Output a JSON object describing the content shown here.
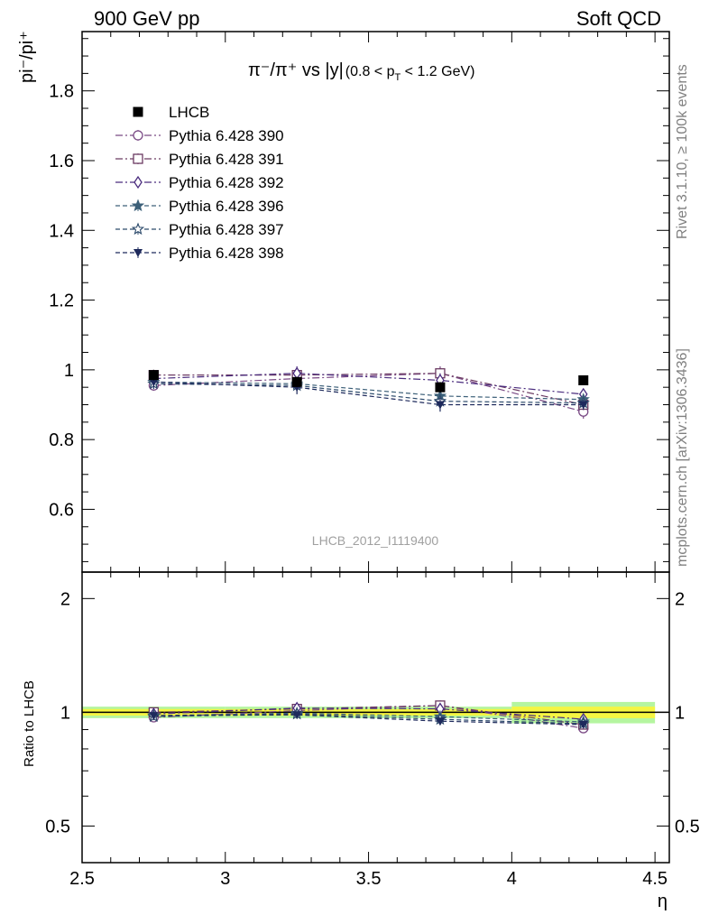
{
  "header": {
    "energy_label": "900 GeV pp",
    "process_label": "Soft QCD"
  },
  "side_labels": {
    "rivet": "Rivet 3.1.10, ≥ 100k events",
    "mcplots": "mcplots.cern.ch [arXiv:1306.3436]"
  },
  "chart_data": {
    "type": "scatter",
    "title": "π⁻/π⁺ vs |y|",
    "title_cut": "(0.8 < p",
    "title_cut_sub": "T",
    "title_cut_end": " < 1.2 GeV)",
    "watermark": "LHCB_2012_I1119400",
    "ylabel_main": "pi⁻/pi⁺",
    "ylabel_ratio": "Ratio to LHCB",
    "xlabel": "η",
    "xlim": [
      2.5,
      4.55
    ],
    "ylim_main": [
      0.42,
      1.97
    ],
    "ylim_ratio": [
      0.4,
      2.35
    ],
    "log_ratio": true,
    "x_ticks": [
      "2.5",
      "3",
      "3.5",
      "4",
      "4.5"
    ],
    "y_ticks_main": [
      "0.6",
      "0.8",
      "1",
      "1.2",
      "1.4",
      "1.6",
      "1.8"
    ],
    "y_ticks_ratio": [
      "0.5",
      "1",
      "2"
    ],
    "legend_position": "top-left",
    "x": [
      2.75,
      3.25,
      3.75,
      4.25
    ],
    "data": {
      "name": "LHCB",
      "values": [
        0.985,
        0.965,
        0.95,
        0.97
      ],
      "errors": [
        0.015,
        0.015,
        0.015,
        0.01
      ],
      "x_low": [
        2.5,
        3.0,
        3.5,
        4.0
      ],
      "x_high": [
        3.0,
        3.5,
        4.0,
        4.5
      ],
      "band_inner": [
        0.02,
        0.02,
        0.02,
        0.035
      ],
      "band_outer": [
        0.035,
        0.035,
        0.035,
        0.065
      ],
      "color": "#000000"
    },
    "series": [
      {
        "name": "Pythia 6.428 390",
        "values": [
          0.955,
          0.975,
          0.99,
          0.88
        ],
        "errors": [
          0.015,
          0.015,
          0.02,
          0.02
        ],
        "color": "#7a4a85",
        "marker": "circle-open",
        "dash": "8,3,2,3"
      },
      {
        "name": "Pythia 6.428 391",
        "values": [
          0.985,
          0.985,
          0.99,
          0.9
        ],
        "errors": [
          0.015,
          0.015,
          0.015,
          0.015
        ],
        "color": "#6b3a62",
        "marker": "square-open",
        "dash": "8,3,2,3"
      },
      {
        "name": "Pythia 6.428 392",
        "values": [
          0.975,
          0.99,
          0.97,
          0.93
        ],
        "errors": [
          0.015,
          0.02,
          0.02,
          0.015
        ],
        "color": "#4a2c7e",
        "marker": "diamond-open",
        "dash": "8,3,2,3"
      },
      {
        "name": "Pythia 6.428 396",
        "values": [
          0.965,
          0.96,
          0.925,
          0.915
        ],
        "errors": [
          0.015,
          0.015,
          0.015,
          0.015
        ],
        "color": "#3d6079",
        "marker": "star-filled",
        "dash": "5,3"
      },
      {
        "name": "Pythia 6.428 397",
        "values": [
          0.96,
          0.955,
          0.91,
          0.905
        ],
        "errors": [
          0.015,
          0.015,
          0.02,
          0.015
        ],
        "color": "#2c4a6b",
        "marker": "star-open",
        "dash": "5,3"
      },
      {
        "name": "Pythia 6.428 398",
        "values": [
          0.965,
          0.95,
          0.9,
          0.9
        ],
        "errors": [
          0.015,
          0.02,
          0.02,
          0.015
        ],
        "color": "#1e2a5c",
        "marker": "triangle-down-filled",
        "dash": "5,3"
      }
    ],
    "colors": {
      "band_inner": "#f5f542",
      "band_outer": "#b5f5a0",
      "frame": "#000000",
      "side_text": "#808080",
      "watermark": "#a0a0a0"
    }
  }
}
